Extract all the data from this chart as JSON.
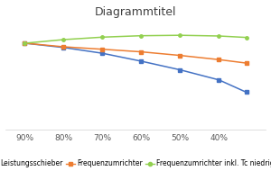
{
  "title": "Diagrammtitel",
  "x_labels": [
    "90%",
    "80%",
    "70%",
    "60%",
    "50%",
    "40%"
  ],
  "series": [
    {
      "name": "Leistungsschieber",
      "color": "#4472C4",
      "marker": "s",
      "values": [
        1.0,
        0.97,
        0.93,
        0.875,
        0.815,
        0.745,
        0.66
      ]
    },
    {
      "name": "Frequenzumrichter",
      "color": "#ED7D31",
      "marker": "s",
      "values": [
        1.0,
        0.975,
        0.958,
        0.94,
        0.915,
        0.886,
        0.862
      ]
    },
    {
      "name": "Frequenzumrichter inkl. Tc niedriger",
      "color": "#92D050",
      "marker": "o",
      "values": [
        1.0,
        1.025,
        1.042,
        1.052,
        1.055,
        1.05,
        1.04
      ]
    }
  ],
  "x_positions": [
    90,
    80,
    70,
    60,
    50,
    40,
    33
  ],
  "x_ticks": [
    90,
    80,
    70,
    60,
    50,
    40
  ],
  "ylim": [
    0.4,
    1.15
  ],
  "xlim_left": 95,
  "xlim_right": 28,
  "background_color": "#FFFFFF",
  "grid_color": "#D9D9D9",
  "title_fontsize": 9,
  "legend_fontsize": 5.5,
  "tick_fontsize": 6.5,
  "spine_color": "#D0D0D0"
}
